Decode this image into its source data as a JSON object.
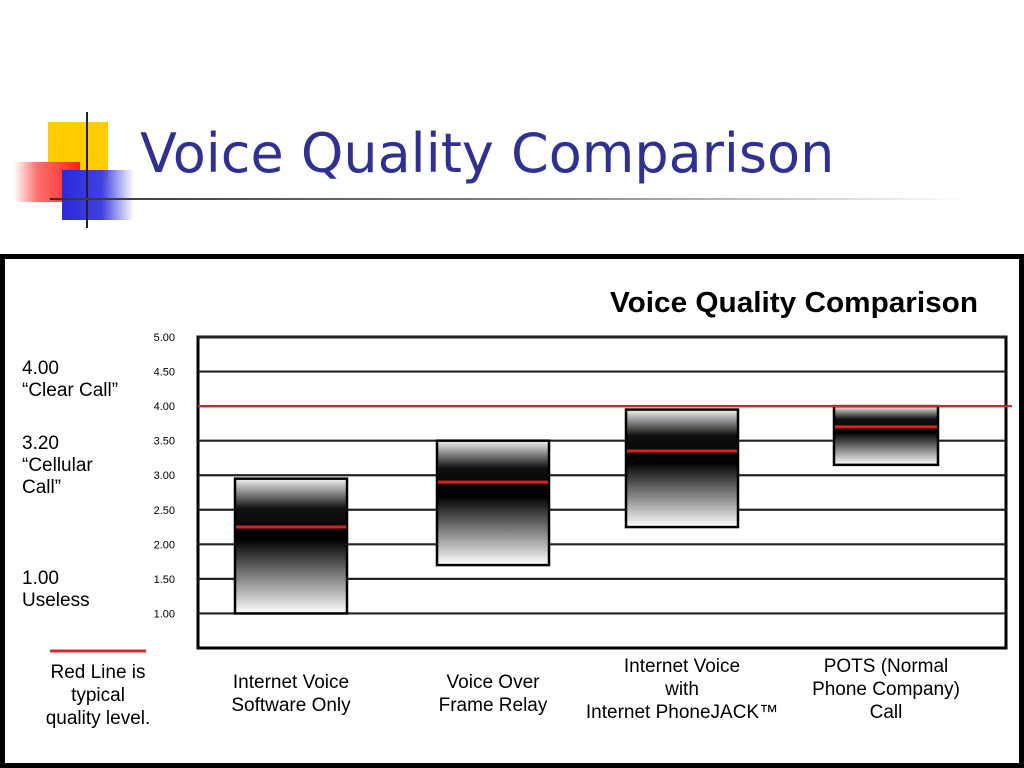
{
  "slide": {
    "title": "Voice Quality Comparison"
  },
  "chart_data": {
    "type": "bar",
    "title": "Voice Quality Comparison",
    "ylim": [
      0.5,
      5.0
    ],
    "grid": true,
    "y_ticks": [
      "5.00",
      "4.50",
      "4.00",
      "3.50",
      "3.00",
      "2.50",
      "2.00",
      "1.50",
      "1.00"
    ],
    "y_tick_values": [
      5.0,
      4.5,
      4.0,
      3.5,
      3.0,
      2.5,
      2.0,
      1.5,
      1.0
    ],
    "reference_line": {
      "value": 4.0,
      "color": "#d62828"
    },
    "categories": [
      [
        "Internet Voice",
        "Software Only"
      ],
      [
        "Voice Over",
        "Frame Relay"
      ],
      [
        "Internet Voice",
        "with",
        "Internet PhoneJACK™"
      ],
      [
        "POTS (Normal",
        "Phone Company)",
        "Call"
      ]
    ],
    "series": [
      {
        "low": [
          1.0,
          1.7,
          2.25,
          3.15
        ],
        "high": [
          2.95,
          3.5,
          3.95,
          4.0
        ],
        "typical": [
          2.25,
          2.9,
          3.35,
          3.7
        ]
      }
    ],
    "annotations": [
      {
        "value": 4.0,
        "lines": [
          "4.00",
          "“Clear Call”"
        ]
      },
      {
        "value": 3.2,
        "lines": [
          "3.20",
          "“Cellular",
          " Call”"
        ]
      },
      {
        "value": 1.0,
        "lines": [
          "1.00",
          "Useless"
        ]
      }
    ],
    "legend": {
      "text": [
        "Red Line is",
        "typical",
        "quality level."
      ],
      "color": "#d62828",
      "placement": "bottom-left"
    }
  }
}
